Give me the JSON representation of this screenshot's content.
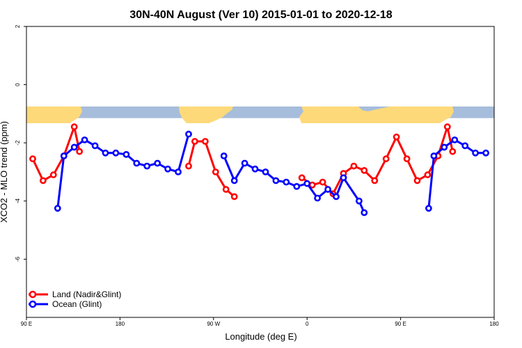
{
  "chart_data": {
    "type": "line",
    "title": "30N-40N August (Ver 10)   2015-01-01 to 2020-12-18",
    "xlabel": "Longitude (deg E)",
    "ylabel": "XCO2 - MLO trend (ppm)",
    "xlim": [
      90,
      540
    ],
    "ylim": [
      -8,
      2
    ],
    "x_ticks": [
      {
        "value": 90,
        "label": "90 E"
      },
      {
        "value": 180,
        "label": "180"
      },
      {
        "value": 270,
        "label": "90 W"
      },
      {
        "value": 360,
        "label": "0"
      },
      {
        "value": 450,
        "label": "90 E"
      },
      {
        "value": 540,
        "label": "180"
      }
    ],
    "y_ticks": [
      {
        "value": 2,
        "label": "2"
      },
      {
        "value": 0,
        "label": "0"
      },
      {
        "value": -2,
        "label": "-2"
      },
      {
        "value": -4,
        "label": "-4"
      },
      {
        "value": -6,
        "label": "-6"
      }
    ],
    "land_mask_band": {
      "y_top": -0.62,
      "y_bottom": -1.15,
      "ocean_color": "#a6bddb",
      "land_color": "#fdd97a"
    },
    "legend_position": "bottom-left",
    "series": [
      {
        "name": "Land (Nadir&Glint)",
        "color": "#ff0000",
        "segments": [
          [
            [
              96,
              -2.55
            ],
            [
              106,
              -3.3
            ],
            [
              116,
              -3.1
            ],
            [
              126,
              -2.45
            ],
            [
              136,
              -1.45
            ],
            [
              141,
              -2.3
            ]
          ],
          [
            [
              246,
              -2.8
            ],
            [
              252,
              -1.95
            ],
            [
              262,
              -1.95
            ],
            [
              272,
              -3.0
            ],
            [
              282,
              -3.6
            ],
            [
              290,
              -3.85
            ]
          ],
          [
            [
              355,
              -3.2
            ],
            [
              365,
              -3.45
            ],
            [
              375,
              -3.35
            ],
            [
              385,
              -3.75
            ],
            [
              395,
              -3.05
            ],
            [
              405,
              -2.8
            ],
            [
              415,
              -2.95
            ],
            [
              425,
              -3.3
            ],
            [
              436,
              -2.55
            ],
            [
              446,
              -1.8
            ],
            [
              456,
              -2.55
            ],
            [
              466,
              -3.3
            ],
            [
              476,
              -3.1
            ],
            [
              486,
              -2.45
            ],
            [
              495,
              -1.45
            ],
            [
              500,
              -2.3
            ]
          ]
        ]
      },
      {
        "name": "Ocean (Glint)",
        "color": "#0000ff",
        "segments": [
          [
            [
              120,
              -4.25
            ],
            [
              126,
              -2.45
            ],
            [
              136,
              -2.15
            ],
            [
              146,
              -1.9
            ],
            [
              156,
              -2.1
            ],
            [
              166,
              -2.35
            ],
            [
              176,
              -2.35
            ],
            [
              186,
              -2.4
            ],
            [
              196,
              -2.7
            ],
            [
              206,
              -2.8
            ],
            [
              216,
              -2.7
            ],
            [
              226,
              -2.9
            ],
            [
              236,
              -3.0
            ],
            [
              246,
              -1.7
            ]
          ],
          [
            [
              280,
              -2.45
            ],
            [
              290,
              -3.3
            ],
            [
              300,
              -2.7
            ],
            [
              310,
              -2.9
            ],
            [
              320,
              -3.0
            ],
            [
              330,
              -3.3
            ],
            [
              340,
              -3.35
            ],
            [
              350,
              -3.5
            ],
            [
              360,
              -3.4
            ],
            [
              370,
              -3.9
            ],
            [
              380,
              -3.6
            ],
            [
              388,
              -3.85
            ],
            [
              395,
              -3.2
            ],
            [
              410,
              -4.0
            ],
            [
              415,
              -4.4
            ]
          ],
          [
            [
              477,
              -4.25
            ],
            [
              482,
              -2.45
            ],
            [
              492,
              -2.15
            ],
            [
              502,
              -1.9
            ],
            [
              512,
              -2.1
            ],
            [
              522,
              -2.35
            ],
            [
              532,
              -2.35
            ]
          ]
        ]
      }
    ]
  }
}
